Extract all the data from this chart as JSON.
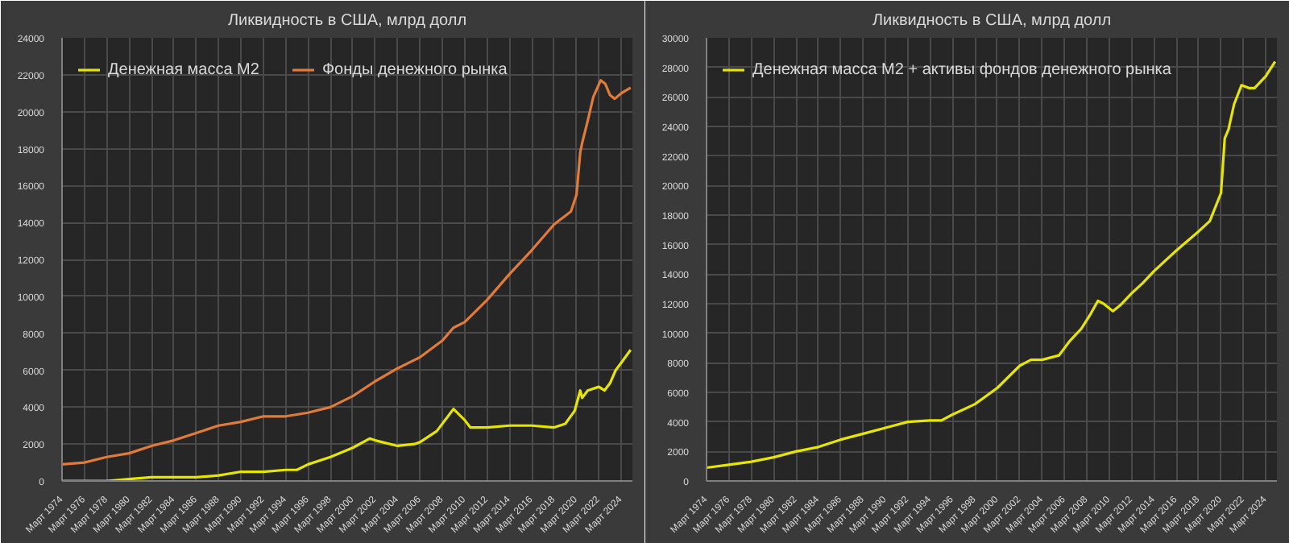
{
  "chart_data": [
    {
      "type": "line",
      "title": "Ликвидность в США, млрд долл",
      "legend": "top left",
      "grid": true,
      "xlim": [
        "1974-03",
        "2025-03"
      ],
      "ylim": [
        0,
        24000
      ],
      "yticks": [
        0,
        2000,
        4000,
        6000,
        8000,
        10000,
        12000,
        14000,
        16000,
        18000,
        20000,
        22000,
        24000
      ],
      "xticks": [
        {
          "value": "1974-03",
          "label": "Март 1974"
        },
        {
          "value": "1976-03",
          "label": "Март 1976"
        },
        {
          "value": "1978-03",
          "label": "Март 1978"
        },
        {
          "value": "1980-03",
          "label": "Март 1980"
        },
        {
          "value": "1982-03",
          "label": "Март 1982"
        },
        {
          "value": "1984-03",
          "label": "Март 1984"
        },
        {
          "value": "1986-03",
          "label": "Март 1986"
        },
        {
          "value": "1988-03",
          "label": "Март 1988"
        },
        {
          "value": "1990-03",
          "label": "Март 1990"
        },
        {
          "value": "1992-03",
          "label": "Март 1992"
        },
        {
          "value": "1994-03",
          "label": "Март 1994"
        },
        {
          "value": "1996-03",
          "label": "Март 1996"
        },
        {
          "value": "1998-03",
          "label": "Март 1998"
        },
        {
          "value": "2000-03",
          "label": "Март 2000"
        },
        {
          "value": "2002-03",
          "label": "Март 2002"
        },
        {
          "value": "2004-03",
          "label": "Март 2004"
        },
        {
          "value": "2006-03",
          "label": "Март 2006"
        },
        {
          "value": "2008-03",
          "label": "Март 2008"
        },
        {
          "value": "2010-03",
          "label": "Март 2010"
        },
        {
          "value": "2012-03",
          "label": "Март 2012"
        },
        {
          "value": "2014-03",
          "label": "Март 2014"
        },
        {
          "value": "2016-03",
          "label": "Март 2016"
        },
        {
          "value": "2018-03",
          "label": "Март 2018"
        },
        {
          "value": "2020-03",
          "label": "Март 2020"
        },
        {
          "value": "2022-03",
          "label": "Март 2022"
        },
        {
          "value": "2024-03",
          "label": "Март 2024"
        }
      ],
      "series": [
        {
          "name": "Денежная масса M2",
          "color": "#e6e600",
          "x": [
            "1974-03",
            "1978-03",
            "1980-03",
            "1982-03",
            "1984-03",
            "1986-03",
            "1988-03",
            "1990-03",
            "1992-03",
            "1994-03",
            "1995-03",
            "1996-03",
            "1998-03",
            "2000-03",
            "2001-09",
            "2002-03",
            "2004-03",
            "2005-09",
            "2006-03",
            "2007-09",
            "2008-09",
            "2009-03",
            "2010-03",
            "2010-09",
            "2012-03",
            "2014-03",
            "2016-03",
            "2018-03",
            "2019-03",
            "2020-01",
            "2020-07",
            "2020-09",
            "2021-03",
            "2022-03",
            "2022-09",
            "2023-03",
            "2023-09",
            "2024-03",
            "2025-01"
          ],
          "values": [
            0,
            0,
            100,
            200,
            200,
            200,
            300,
            500,
            500,
            600,
            600,
            900,
            1300,
            1800,
            2300,
            2200,
            1900,
            2000,
            2100,
            2700,
            3500,
            3900,
            3300,
            2900,
            2900,
            3000,
            3000,
            2900,
            3100,
            3800,
            4900,
            4500,
            4900,
            5100,
            4900,
            5300,
            6000,
            6400,
            7100
          ]
        },
        {
          "name": "Фонды денежного рынка",
          "color": "#e07b39",
          "x": [
            "1974-03",
            "1976-03",
            "1978-03",
            "1980-03",
            "1982-03",
            "1984-03",
            "1986-03",
            "1988-03",
            "1990-03",
            "1992-03",
            "1994-03",
            "1996-03",
            "1998-03",
            "2000-03",
            "2002-03",
            "2004-03",
            "2006-03",
            "2008-03",
            "2009-03",
            "2010-03",
            "2012-03",
            "2014-03",
            "2016-03",
            "2018-03",
            "2019-09",
            "2020-03",
            "2020-07",
            "2020-09",
            "2021-03",
            "2021-09",
            "2022-05",
            "2022-10",
            "2023-03",
            "2023-08",
            "2024-03",
            "2025-01"
          ],
          "values": [
            900,
            1000,
            1300,
            1500,
            1900,
            2200,
            2600,
            3000,
            3200,
            3500,
            3500,
            3700,
            4000,
            4600,
            5400,
            6100,
            6700,
            7600,
            8300,
            8600,
            9800,
            11200,
            12500,
            13900,
            14600,
            15500,
            17800,
            18300,
            19500,
            20800,
            21700,
            21500,
            20900,
            20700,
            21000,
            21300
          ]
        }
      ]
    },
    {
      "type": "line",
      "title": "Ликвидность в США, млрд долл",
      "legend": "top left",
      "grid": true,
      "xlim": [
        "1974-03",
        "2025-03"
      ],
      "ylim": [
        0,
        30000
      ],
      "yticks": [
        0,
        2000,
        4000,
        6000,
        8000,
        10000,
        12000,
        14000,
        16000,
        18000,
        20000,
        22000,
        24000,
        26000,
        28000,
        30000
      ],
      "xticks": [
        {
          "value": "1974-03",
          "label": "Март 1974"
        },
        {
          "value": "1976-03",
          "label": "Март 1976"
        },
        {
          "value": "1978-03",
          "label": "Март 1978"
        },
        {
          "value": "1980-03",
          "label": "Март 1980"
        },
        {
          "value": "1982-03",
          "label": "Март 1982"
        },
        {
          "value": "1984-03",
          "label": "Март 1984"
        },
        {
          "value": "1986-03",
          "label": "Март 1986"
        },
        {
          "value": "1988-03",
          "label": "Март 1988"
        },
        {
          "value": "1990-03",
          "label": "Март 1990"
        },
        {
          "value": "1992-03",
          "label": "Март 1992"
        },
        {
          "value": "1994-03",
          "label": "Март 1994"
        },
        {
          "value": "1996-03",
          "label": "Март 1996"
        },
        {
          "value": "1998-03",
          "label": "Март 1998"
        },
        {
          "value": "2000-03",
          "label": "Март 2000"
        },
        {
          "value": "2002-03",
          "label": "Март 2002"
        },
        {
          "value": "2004-03",
          "label": "Март 2004"
        },
        {
          "value": "2006-03",
          "label": "Март 2006"
        },
        {
          "value": "2008-03",
          "label": "Март 2008"
        },
        {
          "value": "2010-03",
          "label": "Март 2010"
        },
        {
          "value": "2012-03",
          "label": "Март 2012"
        },
        {
          "value": "2014-03",
          "label": "Март 2014"
        },
        {
          "value": "2016-03",
          "label": "Март 2016"
        },
        {
          "value": "2018-03",
          "label": "Март 2018"
        },
        {
          "value": "2020-03",
          "label": "Март 2020"
        },
        {
          "value": "2022-03",
          "label": "Март 2022"
        },
        {
          "value": "2024-03",
          "label": "Март 2024"
        }
      ],
      "series": [
        {
          "name": "Денежная масса M2 + активы фондов денежного рынка",
          "color": "#e6e600",
          "x": [
            "1974-03",
            "1976-03",
            "1978-03",
            "1980-03",
            "1982-03",
            "1984-03",
            "1986-03",
            "1988-03",
            "1990-03",
            "1992-03",
            "1994-03",
            "1995-03",
            "1996-03",
            "1998-03",
            "2000-03",
            "2002-03",
            "2003-03",
            "2004-03",
            "2005-09",
            "2006-09",
            "2007-09",
            "2008-07",
            "2009-03",
            "2009-09",
            "2010-07",
            "2011-03",
            "2012-03",
            "2013-03",
            "2014-03",
            "2016-03",
            "2018-03",
            "2019-03",
            "2020-03",
            "2020-07",
            "2020-11",
            "2021-05",
            "2022-01",
            "2022-09",
            "2023-03",
            "2024-03",
            "2025-01"
          ],
          "values": [
            900,
            1100,
            1300,
            1600,
            2000,
            2300,
            2800,
            3200,
            3600,
            4000,
            4100,
            4100,
            4500,
            5200,
            6300,
            7800,
            8200,
            8200,
            8500,
            9500,
            10300,
            11300,
            12200,
            12000,
            11500,
            11900,
            12700,
            13400,
            14200,
            15600,
            16900,
            17600,
            19500,
            23200,
            23800,
            25500,
            26800,
            26600,
            26600,
            27400,
            28400
          ]
        }
      ]
    }
  ]
}
